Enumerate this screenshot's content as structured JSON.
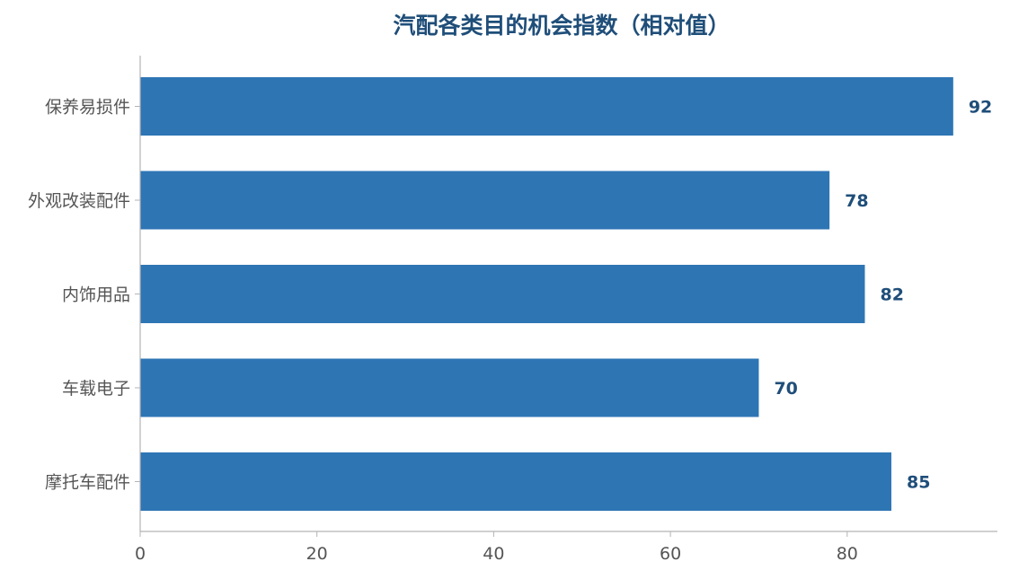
{
  "colors": {
    "bar": "#2e75b4",
    "title": "#1f4e79",
    "value_label": "#1f4e79",
    "axis_text": "#555555",
    "axis_line": "#b3b3b3"
  },
  "chart_data": {
    "type": "bar",
    "orientation": "horizontal",
    "title": "汽配各类目的机会指数（相对值）",
    "xlabel": "",
    "ylabel": "",
    "categories": [
      "保养易损件",
      "外观改装配件",
      "内饰用品",
      "车载电子",
      "摩托车配件"
    ],
    "values": [
      92,
      78,
      82,
      70,
      85
    ],
    "xlim": [
      0,
      97
    ],
    "xticks": [
      0,
      20,
      40,
      60,
      80
    ],
    "grid": false,
    "legend": "none",
    "data_labels": true
  }
}
